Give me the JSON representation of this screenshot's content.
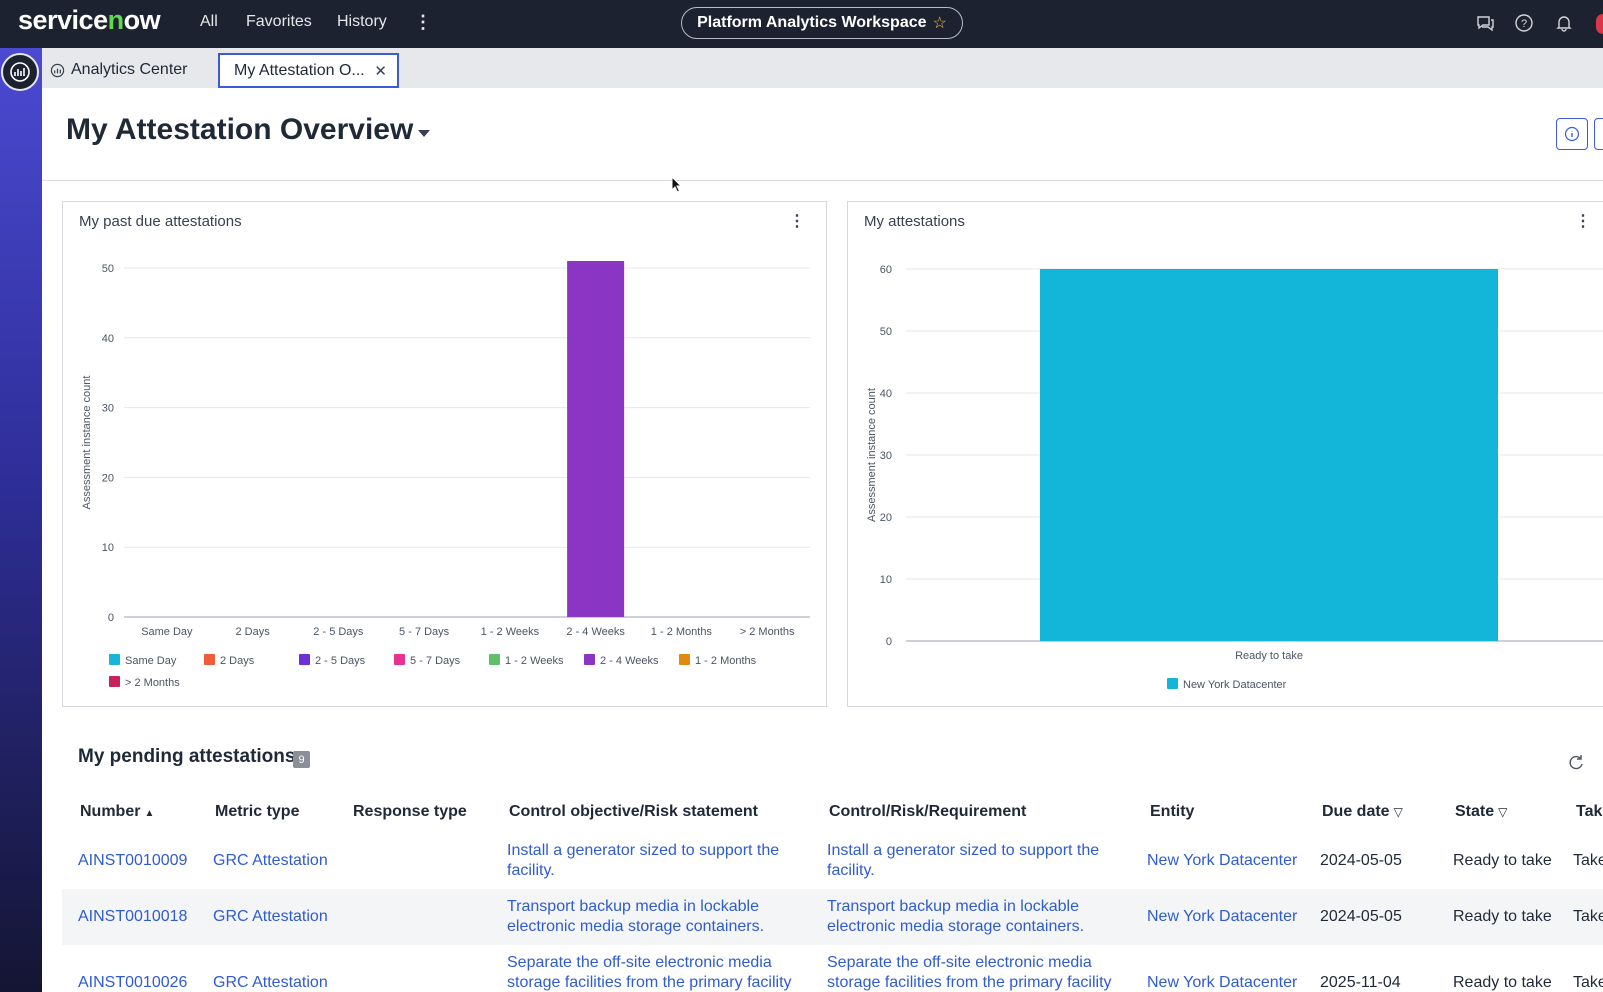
{
  "topnav": {
    "logo": "servicenow",
    "links": [
      "All",
      "Favorites",
      "History"
    ],
    "workspace_title": "Platform Analytics Workspace"
  },
  "tabs": [
    {
      "label": "Analytics Center"
    },
    {
      "label": "My Attestation O...",
      "active": true
    }
  ],
  "page": {
    "title": "My Attestation Overview"
  },
  "cards": {
    "past_due_title": "My past due attestations",
    "attest_title": "My attestations"
  },
  "chart_data": [
    {
      "type": "bar",
      "title": "My past due attestations",
      "ylabel": "Assessment instance count",
      "xlabel": "",
      "categories": [
        "Same Day",
        "2 Days",
        "2 - 5 Days",
        "5 - 7 Days",
        "1 - 2 Weeks",
        "2 - 4 Weeks",
        "1 - 2 Months",
        "> 2 Months"
      ],
      "values": [
        0,
        0,
        0,
        0,
        0,
        51,
        0,
        0
      ],
      "colors": [
        "#1ab5d6",
        "#f15a3a",
        "#6d2fd6",
        "#e8328e",
        "#5fbf6b",
        "#8b35c4",
        "#e08a10",
        "#c62359"
      ],
      "ylim": [
        0,
        50
      ],
      "yticks": [
        0,
        10,
        20,
        30,
        40,
        50
      ],
      "legend": [
        "Same Day",
        "2 Days",
        "2 - 5 Days",
        "5 - 7 Days",
        "1 - 2 Weeks",
        "2 - 4 Weeks",
        "1 - 2 Months",
        "> 2 Months"
      ],
      "legend_position": "bottom",
      "grid": true
    },
    {
      "type": "bar",
      "title": "My attestations",
      "ylabel": "Assessment instance count",
      "xlabel": "",
      "categories": [
        "Ready to take"
      ],
      "series": [
        {
          "name": "New York Datacenter",
          "values": [
            60
          ],
          "color": "#13b5d8"
        }
      ],
      "ylim": [
        0,
        60
      ],
      "yticks": [
        0,
        10,
        20,
        30,
        40,
        50,
        60
      ],
      "legend_position": "bottom",
      "grid": true
    }
  ],
  "pending": {
    "title": "My pending attestations",
    "count": "9",
    "columns": [
      "Number",
      "Metric type",
      "Response type",
      "Control objective/Risk statement",
      "Control/Risk/Requirement",
      "Entity",
      "Due date",
      "State",
      "Tak"
    ],
    "rows": [
      {
        "number": "AINST0010009",
        "metric": "GRC Attestation",
        "response": "",
        "objective": "Install a generator sized to support the facility.",
        "control": "Install a generator sized to support the facility.",
        "entity": "New York Datacenter",
        "due": "2024-05-05",
        "state": "Ready to take",
        "take": "Take"
      },
      {
        "number": "AINST0010018",
        "metric": "GRC Attestation",
        "response": "",
        "objective": "Transport backup media in lockable electronic media storage containers.",
        "control": "Transport backup media in lockable electronic media storage containers.",
        "entity": "New York Datacenter",
        "due": "2024-05-05",
        "state": "Ready to take",
        "take": "Take"
      },
      {
        "number": "AINST0010026",
        "metric": "GRC Attestation",
        "response": "",
        "objective": "Separate the off-site electronic media storage facilities from the primary facility",
        "control": "Separate the off-site electronic media storage facilities from the primary facility",
        "entity": "New York Datacenter",
        "due": "2025-11-04",
        "state": "Ready to take",
        "take": "Take"
      }
    ]
  }
}
